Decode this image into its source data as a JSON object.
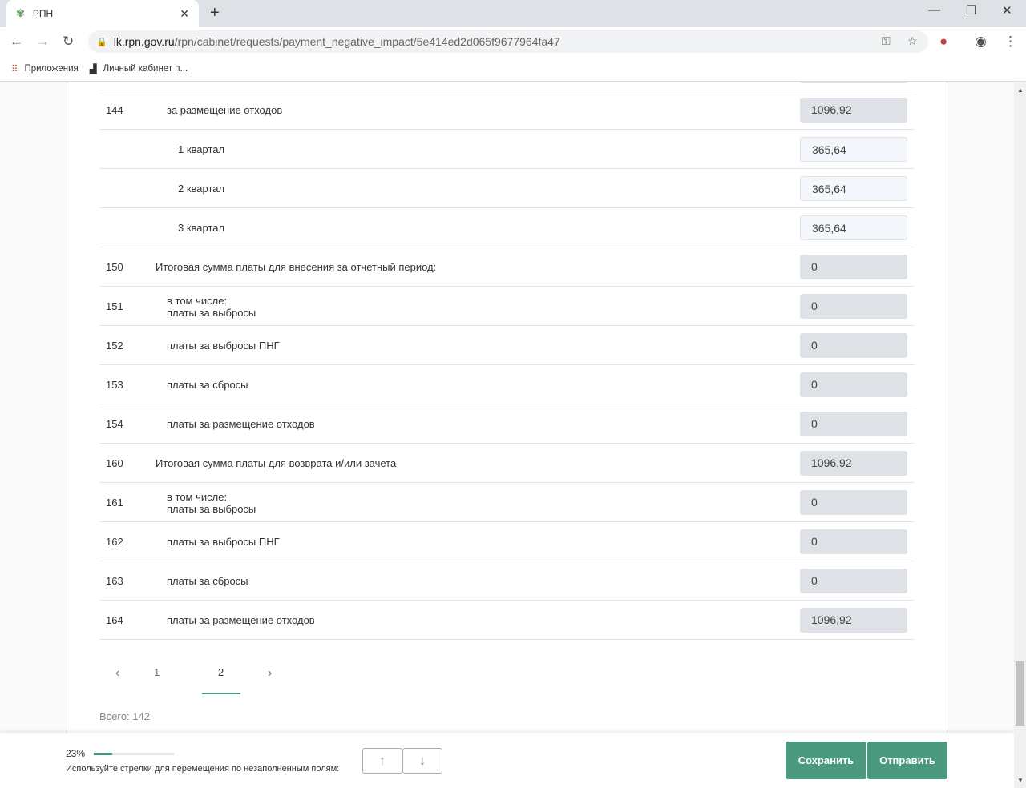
{
  "browser": {
    "tab_title": "РПН",
    "url_host": "lk.rpn.gov.ru",
    "url_path": "/rpn/cabinet/requests/payment_negative_impact/5e414ed2d065f9677964fa47",
    "bookmarks": [
      {
        "label": "Приложения"
      },
      {
        "label": "Личный кабинет п..."
      }
    ]
  },
  "rows": [
    {
      "num": "144",
      "label": "за размещение отходов",
      "value": "1096,92",
      "editable": false,
      "indent": 2
    },
    {
      "num": "",
      "label": "1 квартал",
      "value": "365,64",
      "editable": true,
      "indent": 3
    },
    {
      "num": "",
      "label": "2 квартал",
      "value": "365,64",
      "editable": true,
      "indent": 3
    },
    {
      "num": "",
      "label": "3 квартал",
      "value": "365,64",
      "editable": true,
      "indent": 3
    },
    {
      "num": "150",
      "label": "Итоговая сумма платы для внесения за отчетный период:",
      "value": "0",
      "editable": false,
      "indent": 1
    },
    {
      "num": "151",
      "label": "в том числе:",
      "label2": "платы за выбросы",
      "value": "0",
      "editable": false,
      "indent": 2
    },
    {
      "num": "152",
      "label": "платы за выбросы ПНГ",
      "value": "0",
      "editable": false,
      "indent": 2
    },
    {
      "num": "153",
      "label": "платы за сбросы",
      "value": "0",
      "editable": false,
      "indent": 2
    },
    {
      "num": "154",
      "label": "платы за размещение отходов",
      "value": "0",
      "editable": false,
      "indent": 2
    },
    {
      "num": "160",
      "label": "Итоговая сумма платы для возврата и/или зачета",
      "value": "1096,92",
      "editable": false,
      "indent": 1
    },
    {
      "num": "161",
      "label": "в том числе:",
      "label2": "платы за выбросы",
      "value": "0",
      "editable": false,
      "indent": 2
    },
    {
      "num": "162",
      "label": "платы за выбросы ПНГ",
      "value": "0",
      "editable": false,
      "indent": 2
    },
    {
      "num": "163",
      "label": "платы за сбросы",
      "value": "0",
      "editable": false,
      "indent": 2
    },
    {
      "num": "164",
      "label": "платы за размещение отходов",
      "value": "1096,92",
      "editable": false,
      "indent": 2
    }
  ],
  "pagination": {
    "pages": [
      "1",
      "2"
    ],
    "current": "2"
  },
  "total": "Всего: 142",
  "footer": {
    "progress_label": "23%",
    "progress": 23,
    "hint": "Используйте стрелки для перемещения по незаполненным полям:",
    "save": "Сохранить",
    "send": "Отправить"
  },
  "colors": {
    "accent": "#4b9a80"
  }
}
